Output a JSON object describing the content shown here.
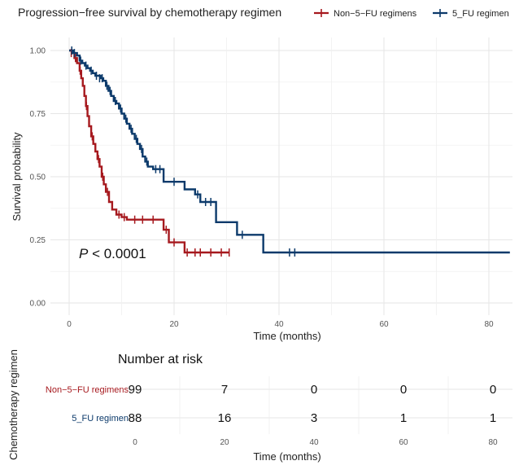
{
  "colors": {
    "non5fu": "#A6191E",
    "fu5": "#0C3A6B"
  },
  "legend": {
    "title": "Progression−free survival by chemotherapy regimen",
    "items": [
      {
        "label": "Non−5−FU regimens",
        "key": "non5fu"
      },
      {
        "label": "5_FU regimen",
        "key": "fu5"
      }
    ]
  },
  "chart_data": {
    "type": "line",
    "title": "Progression−free survival by chemotherapy regimen",
    "xlabel": "Time (months)",
    "ylabel": "Survival probability",
    "xlim": [
      0,
      84
    ],
    "ylim": [
      0,
      1
    ],
    "xticks": [
      0,
      20,
      40,
      60,
      80
    ],
    "xtick_labels": [
      "0",
      "20",
      "40",
      "60",
      "80"
    ],
    "yticks": [
      0,
      0.25,
      0.5,
      0.75,
      1
    ],
    "ytick_labels": [
      "0.00",
      "0.25",
      "0.50",
      "0.75",
      "1.00"
    ],
    "annotation": {
      "p_symbol": "P",
      "p_text": " < 0.0001",
      "at": [
        2,
        0.19
      ]
    },
    "series": [
      {
        "name": "Non−5−FU regimens",
        "key": "non5fu",
        "steps": [
          [
            0,
            1.0
          ],
          [
            0.5,
            0.99
          ],
          [
            1,
            0.97
          ],
          [
            1.5,
            0.95
          ],
          [
            2,
            0.92
          ],
          [
            2.3,
            0.89
          ],
          [
            2.6,
            0.86
          ],
          [
            2.9,
            0.82
          ],
          [
            3.2,
            0.78
          ],
          [
            3.5,
            0.74
          ],
          [
            3.8,
            0.7
          ],
          [
            4.2,
            0.66
          ],
          [
            4.6,
            0.63
          ],
          [
            5,
            0.6
          ],
          [
            5.4,
            0.57
          ],
          [
            5.8,
            0.54
          ],
          [
            6.2,
            0.5
          ],
          [
            6.6,
            0.47
          ],
          [
            7,
            0.44
          ],
          [
            7.6,
            0.4
          ],
          [
            8.2,
            0.37
          ],
          [
            9,
            0.35
          ],
          [
            10,
            0.34
          ],
          [
            11,
            0.33
          ],
          [
            18,
            0.29
          ],
          [
            19,
            0.24
          ],
          [
            22,
            0.2
          ],
          [
            30.5,
            0.2
          ]
        ],
        "censor": [
          [
            0.4,
            0.99
          ],
          [
            1.2,
            0.97
          ],
          [
            2.1,
            0.92
          ],
          [
            3.3,
            0.78
          ],
          [
            4.4,
            0.66
          ],
          [
            5.6,
            0.57
          ],
          [
            6.4,
            0.5
          ],
          [
            7.3,
            0.44
          ],
          [
            9.5,
            0.35
          ],
          [
            10.5,
            0.34
          ],
          [
            12.5,
            0.33
          ],
          [
            14,
            0.33
          ],
          [
            16,
            0.33
          ],
          [
            18.5,
            0.29
          ],
          [
            20,
            0.24
          ],
          [
            22.5,
            0.2
          ],
          [
            24,
            0.2
          ],
          [
            25,
            0.2
          ],
          [
            27,
            0.2
          ],
          [
            29,
            0.2
          ],
          [
            30.5,
            0.2
          ]
        ]
      },
      {
        "name": "5_FU regimen",
        "key": "fu5",
        "steps": [
          [
            0,
            1.0
          ],
          [
            0.8,
            0.99
          ],
          [
            1.5,
            0.98
          ],
          [
            2,
            0.96
          ],
          [
            2.5,
            0.95
          ],
          [
            3,
            0.94
          ],
          [
            3.5,
            0.93
          ],
          [
            4,
            0.92
          ],
          [
            4.5,
            0.91
          ],
          [
            5,
            0.9
          ],
          [
            6,
            0.89
          ],
          [
            6.5,
            0.88
          ],
          [
            7,
            0.86
          ],
          [
            7.5,
            0.84
          ],
          [
            8,
            0.82
          ],
          [
            8.5,
            0.8
          ],
          [
            9,
            0.79
          ],
          [
            9.5,
            0.77
          ],
          [
            10,
            0.75
          ],
          [
            10.5,
            0.73
          ],
          [
            11,
            0.71
          ],
          [
            11.5,
            0.69
          ],
          [
            12,
            0.67
          ],
          [
            12.5,
            0.65
          ],
          [
            13,
            0.63
          ],
          [
            13.5,
            0.61
          ],
          [
            14,
            0.58
          ],
          [
            14.5,
            0.56
          ],
          [
            15,
            0.54
          ],
          [
            16,
            0.53
          ],
          [
            18,
            0.48
          ],
          [
            22,
            0.45
          ],
          [
            24,
            0.43
          ],
          [
            25,
            0.4
          ],
          [
            28,
            0.32
          ],
          [
            32,
            0.27
          ],
          [
            37,
            0.2
          ],
          [
            84,
            0.2
          ]
        ],
        "censor": [
          [
            0.5,
            1.0
          ],
          [
            1,
            0.99
          ],
          [
            2.2,
            0.96
          ],
          [
            3.2,
            0.94
          ],
          [
            4.2,
            0.92
          ],
          [
            5.2,
            0.9
          ],
          [
            5.8,
            0.89
          ],
          [
            6.3,
            0.89
          ],
          [
            7.2,
            0.86
          ],
          [
            7.8,
            0.84
          ],
          [
            8.8,
            0.8
          ],
          [
            9.8,
            0.77
          ],
          [
            10.8,
            0.73
          ],
          [
            11.8,
            0.69
          ],
          [
            12.8,
            0.65
          ],
          [
            13.8,
            0.61
          ],
          [
            14.8,
            0.56
          ],
          [
            16.5,
            0.53
          ],
          [
            17.3,
            0.53
          ],
          [
            20,
            0.48
          ],
          [
            24.5,
            0.43
          ],
          [
            26,
            0.4
          ],
          [
            27,
            0.4
          ],
          [
            33,
            0.27
          ],
          [
            42,
            0.2
          ],
          [
            43,
            0.2
          ]
        ]
      }
    ]
  },
  "risk_table": {
    "title": "Number at risk",
    "y_axis_label": "Chemotherapy regimen",
    "x_axis_label": "Time (months)",
    "time_labels": [
      "0",
      "20",
      "40",
      "60",
      "80"
    ],
    "rows": [
      {
        "label": "Non−5−FU regimens",
        "key": "non5fu",
        "values": [
          "99",
          "7",
          "0",
          "0",
          "0"
        ]
      },
      {
        "label": "5_FU regimen",
        "key": "fu5",
        "values": [
          "88",
          "16",
          "3",
          "1",
          "1"
        ]
      }
    ]
  }
}
